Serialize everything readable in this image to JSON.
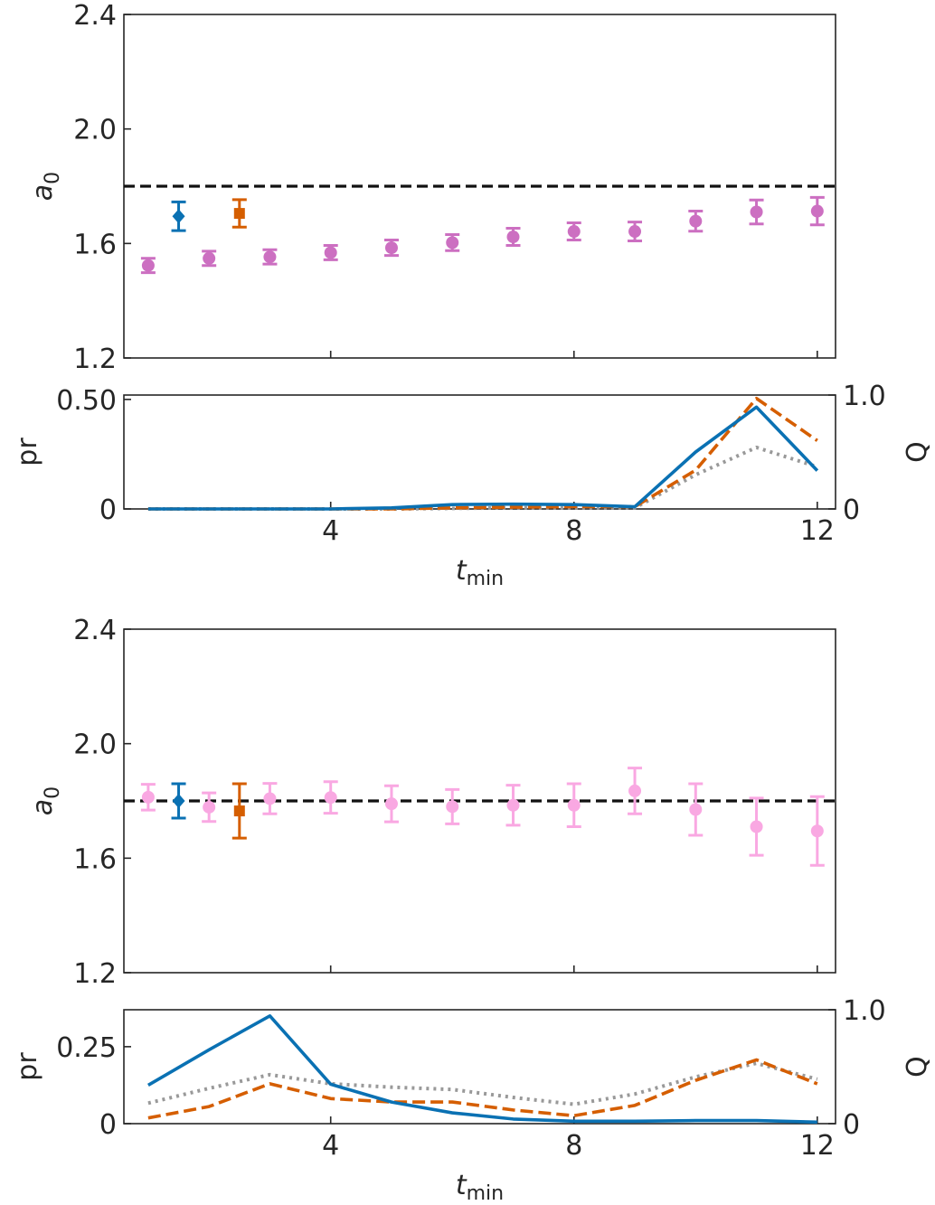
{
  "chart_data": [
    {
      "type": "scatter",
      "ylabel": "a",
      "ylabel_sub": "0",
      "ylim": [
        1.2,
        2.4
      ],
      "xlim": [
        0.6,
        12.3
      ],
      "yticks": [
        "1.2",
        "1.6",
        "2.0",
        "2.4"
      ],
      "xticks": [
        4,
        8,
        12
      ],
      "reference_y": 1.8,
      "series": [
        {
          "marker": "circle",
          "color": "#cc6fc1",
          "points": [
            {
              "x": 1,
              "y": 1.523,
              "err": 0.025
            },
            {
              "x": 2,
              "y": 1.548,
              "err": 0.025
            },
            {
              "x": 3,
              "y": 1.553,
              "err": 0.025
            },
            {
              "x": 4,
              "y": 1.568,
              "err": 0.025
            },
            {
              "x": 5,
              "y": 1.585,
              "err": 0.027
            },
            {
              "x": 6,
              "y": 1.603,
              "err": 0.028
            },
            {
              "x": 7,
              "y": 1.623,
              "err": 0.03
            },
            {
              "x": 8,
              "y": 1.642,
              "err": 0.03
            },
            {
              "x": 9,
              "y": 1.642,
              "err": 0.033
            },
            {
              "x": 10,
              "y": 1.678,
              "err": 0.035
            },
            {
              "x": 11,
              "y": 1.71,
              "err": 0.042
            },
            {
              "x": 12,
              "y": 1.713,
              "err": 0.048
            }
          ]
        },
        {
          "marker": "diamond",
          "color": "#0a71b3",
          "points": [
            {
              "x": 1.5,
              "y": 1.695,
              "err": 0.05
            }
          ]
        },
        {
          "marker": "square",
          "color": "#d55e00",
          "points": [
            {
              "x": 2.5,
              "y": 1.705,
              "err": 0.048
            }
          ]
        }
      ]
    },
    {
      "type": "line",
      "ylabel": "pr",
      "ylabel_right": "Q",
      "xlabel": "t",
      "xlabel_sub": "min",
      "xlim": [
        0.6,
        12.3
      ],
      "xticks": [
        4,
        8,
        12
      ],
      "ylim_left": [
        0,
        0.52
      ],
      "yticks_left": [
        "0",
        "0.50"
      ],
      "ylim_right": [
        0,
        1.0
      ],
      "yticks_right": [
        "0",
        "1.0"
      ],
      "x": [
        1,
        2,
        3,
        4,
        5,
        6,
        7,
        8,
        9,
        10,
        11,
        12
      ],
      "series": [
        {
          "style": "solid",
          "color": "#0a71b3",
          "axis": "left",
          "values": [
            0.0,
            0.0,
            0.0,
            0.0,
            0.005,
            0.02,
            0.022,
            0.02,
            0.01,
            0.26,
            0.465,
            0.175
          ]
        },
        {
          "style": "dashed",
          "color": "#d55e00",
          "axis": "right",
          "values": [
            0.0,
            0.0,
            0.0,
            0.0,
            0.0,
            0.01,
            0.015,
            0.02,
            0.02,
            0.34,
            0.97,
            0.6
          ]
        },
        {
          "style": "dotted",
          "color": "#999999",
          "axis": "right",
          "values": [
            0.0,
            0.0,
            0.0,
            0.0,
            0.0,
            0.005,
            0.01,
            0.01,
            0.01,
            0.3,
            0.54,
            0.37
          ]
        }
      ]
    },
    {
      "type": "scatter",
      "ylabel": "a",
      "ylabel_sub": "0",
      "ylim": [
        1.2,
        2.4
      ],
      "xlim": [
        0.6,
        12.3
      ],
      "yticks": [
        "1.2",
        "1.6",
        "2.0",
        "2.4"
      ],
      "xticks": [
        4,
        8,
        12
      ],
      "reference_y": 1.8,
      "series": [
        {
          "marker": "circle",
          "color": "#f9a8e2",
          "points": [
            {
              "x": 1,
              "y": 1.813,
              "err": 0.045
            },
            {
              "x": 2,
              "y": 1.778,
              "err": 0.05
            },
            {
              "x": 3,
              "y": 1.808,
              "err": 0.053
            },
            {
              "x": 4,
              "y": 1.812,
              "err": 0.055
            },
            {
              "x": 5,
              "y": 1.79,
              "err": 0.063
            },
            {
              "x": 6,
              "y": 1.78,
              "err": 0.06
            },
            {
              "x": 7,
              "y": 1.785,
              "err": 0.07
            },
            {
              "x": 8,
              "y": 1.785,
              "err": 0.075
            },
            {
              "x": 9,
              "y": 1.835,
              "err": 0.08
            },
            {
              "x": 10,
              "y": 1.77,
              "err": 0.09
            },
            {
              "x": 11,
              "y": 1.71,
              "err": 0.1
            },
            {
              "x": 12,
              "y": 1.695,
              "err": 0.12
            }
          ]
        },
        {
          "marker": "diamond",
          "color": "#0a71b3",
          "points": [
            {
              "x": 1.5,
              "y": 1.8,
              "err": 0.06
            }
          ]
        },
        {
          "marker": "square",
          "color": "#d55e00",
          "points": [
            {
              "x": 2.5,
              "y": 1.765,
              "err": 0.095
            }
          ]
        }
      ]
    },
    {
      "type": "line",
      "ylabel": "pr",
      "ylabel_right": "Q",
      "xlabel": "t",
      "xlabel_sub": "min",
      "xlim": [
        0.6,
        12.3
      ],
      "xticks": [
        4,
        8,
        12
      ],
      "ylim_left": [
        0,
        0.37
      ],
      "yticks_left": [
        "0",
        "0.25"
      ],
      "ylim_right": [
        0,
        1.0
      ],
      "yticks_right": [
        "0",
        "1.0"
      ],
      "x": [
        1,
        2,
        3,
        4,
        5,
        6,
        7,
        8,
        9,
        10,
        11,
        12
      ],
      "series": [
        {
          "style": "solid",
          "color": "#0a71b3",
          "axis": "left",
          "values": [
            0.125,
            0.24,
            0.35,
            0.128,
            0.07,
            0.035,
            0.015,
            0.008,
            0.008,
            0.01,
            0.01,
            0.005
          ]
        },
        {
          "style": "dashed",
          "color": "#d55e00",
          "axis": "right",
          "values": [
            0.05,
            0.15,
            0.35,
            0.22,
            0.19,
            0.19,
            0.12,
            0.07,
            0.16,
            0.38,
            0.56,
            0.35
          ]
        },
        {
          "style": "dotted",
          "color": "#999999",
          "axis": "right",
          "values": [
            0.18,
            0.31,
            0.43,
            0.35,
            0.32,
            0.3,
            0.23,
            0.17,
            0.26,
            0.41,
            0.53,
            0.39
          ]
        }
      ]
    }
  ]
}
